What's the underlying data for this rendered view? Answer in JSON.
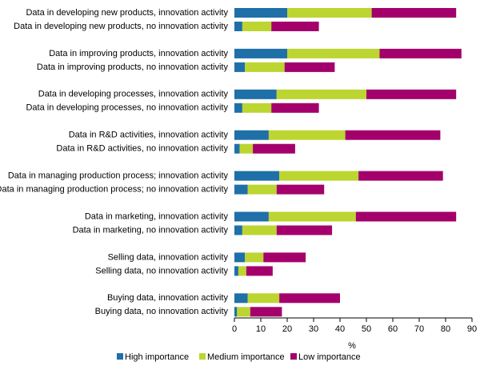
{
  "chart_data": {
    "type": "stacked-bar-horizontal",
    "categories": [
      "Data in developing new products, innovation activity",
      "Data in developing new products, no innovation activity",
      "Data in improving products, innovation activity",
      "Data in improving products, no innovation activity",
      "Data in developing processes, innovation activity",
      "Data in developing processes, no innovation activity",
      "Data in R&D activities, innovation activity",
      "Data in R&D activities, no innovation activity",
      "Data in managing production process; innovation activity",
      "Data in managing production process; no innovation activity",
      "Data in marketing, innovation activity",
      "Data in marketing, no innovation activity",
      "Selling data, innovation activity",
      "Selling data, no innovation activity",
      "Buying data, innovation activity",
      "Buying data, no innovation activity"
    ],
    "series": [
      {
        "name": "High importance",
        "color": "#1f6fa8",
        "values": [
          20,
          3,
          20,
          4,
          16,
          3,
          13,
          2,
          17,
          5,
          13,
          3,
          4,
          1.5,
          5,
          1
        ]
      },
      {
        "name": "Medium importance",
        "color": "#bdd531",
        "values": [
          32,
          11,
          35,
          15,
          34,
          11,
          29,
          5,
          30,
          11,
          33,
          13,
          7,
          3,
          12,
          5
        ]
      },
      {
        "name": "Low importance",
        "color": "#a3006b",
        "values": [
          32,
          18,
          31,
          19,
          34,
          18,
          36,
          16,
          32,
          18,
          38,
          21,
          16,
          10,
          23,
          12
        ]
      }
    ],
    "x_label": "%",
    "xlim": [
      0,
      90
    ],
    "xticks": [
      0,
      10,
      20,
      30,
      40,
      50,
      60,
      70,
      80,
      90
    ],
    "grid": false,
    "legend": "bottom"
  }
}
